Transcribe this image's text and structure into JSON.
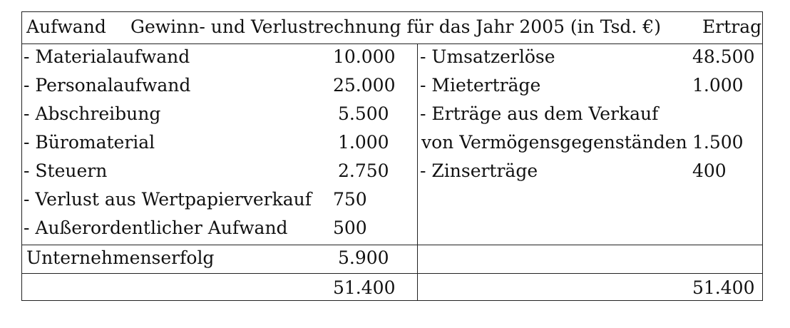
{
  "header": {
    "left": "Aufwand",
    "title": "Gewinn- und Verlustrechnung für das Jahr 2005 (in Tsd. €)",
    "right": "Ertrag"
  },
  "aufwand": [
    {
      "label": "- Materialaufwand",
      "value": "10.000"
    },
    {
      "label": "- Personalaufwand",
      "value": "25.000"
    },
    {
      "label": "- Abschreibung",
      "value": "5.500"
    },
    {
      "label": "- Büromaterial",
      "value": "1.000"
    },
    {
      "label": "- Steuern",
      "value": "2.750"
    },
    {
      "label": "- Verlust aus Wertpapierverkauf",
      "value": "750"
    },
    {
      "label": "- Außerordentlicher Aufwand",
      "value": "500"
    }
  ],
  "ertrag": [
    {
      "label": "- Umsatzerlöse",
      "value": "48.500"
    },
    {
      "label": "- Mieterträge",
      "value": "1.000"
    },
    {
      "label": "- Erträge aus dem Verkauf",
      "value": ""
    },
    {
      "label": "von Vermögensgegenständen",
      "value": "1.500"
    },
    {
      "label": "- Zinserträge",
      "value": "400"
    }
  ],
  "erfolg": {
    "label": "Unternehmenserfolg",
    "value": "5.900"
  },
  "totals": {
    "aufwand": "51.400",
    "ertrag": "51.400"
  }
}
